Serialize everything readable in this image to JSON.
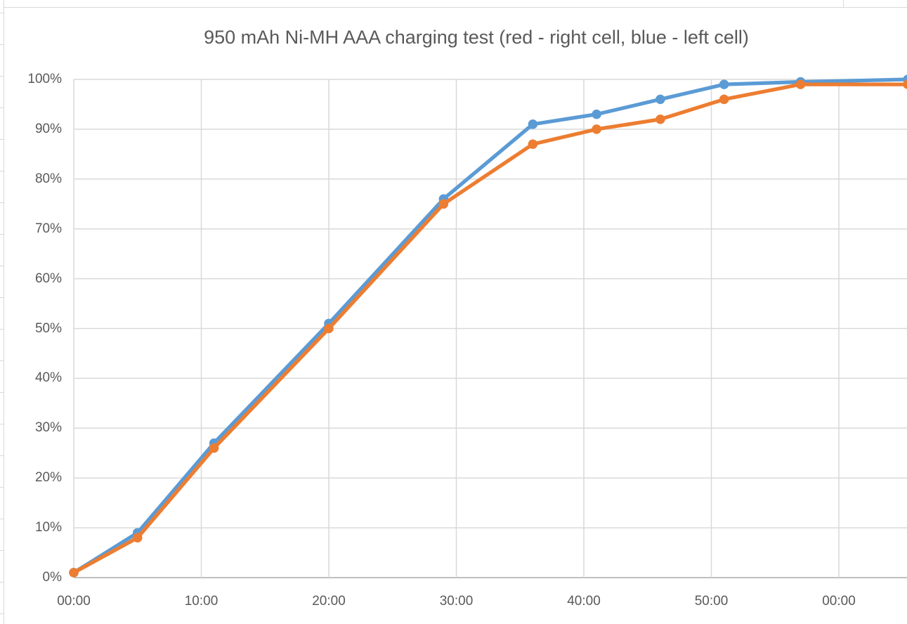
{
  "chart_data": {
    "type": "line",
    "title": "950 mAh Ni-MH AAA charging test (red - right cell, blue - left cell)",
    "xlabel": "",
    "ylabel": "",
    "ylim": [
      0,
      100
    ],
    "y_tick_labels": [
      "0%",
      "10%",
      "20%",
      "30%",
      "40%",
      "50%",
      "60%",
      "70%",
      "80%",
      "90%",
      "100%"
    ],
    "x_tick_labels": [
      "00:00",
      "10:00",
      "20:00",
      "30:00",
      "40:00",
      "50:00",
      "00:00"
    ],
    "x_tick_minutes": [
      0,
      10,
      20,
      30,
      40,
      50,
      60
    ],
    "xlim_minutes": [
      0,
      65.4
    ],
    "grid": true,
    "legend_position": "none",
    "x_labels": [
      "00:00",
      "05:00",
      "11:00",
      "20:00",
      "29:00",
      "36:00",
      "41:00",
      "46:00",
      "51:00",
      "57:00",
      "65:00"
    ],
    "x_minutes": [
      0,
      5,
      11,
      20,
      29,
      36,
      41,
      46,
      51,
      57,
      65.4
    ],
    "series": [
      {
        "name": "blue - left cell",
        "color": "#5B9BD5",
        "values": [
          1,
          9,
          27,
          51,
          76,
          91,
          93,
          96,
          99,
          99.5,
          100
        ]
      },
      {
        "name": "red - right cell",
        "color": "#ED7D31",
        "values": [
          1,
          8,
          26,
          50,
          75,
          87,
          90,
          92,
          96,
          99,
          99
        ]
      }
    ]
  },
  "colors": {
    "gridline": "#d9d9d9",
    "axis_line": "#bfbfbf",
    "text": "#595959",
    "background": "#ffffff",
    "series_blue": "#5B9BD5",
    "series_orange": "#ED7D31"
  }
}
